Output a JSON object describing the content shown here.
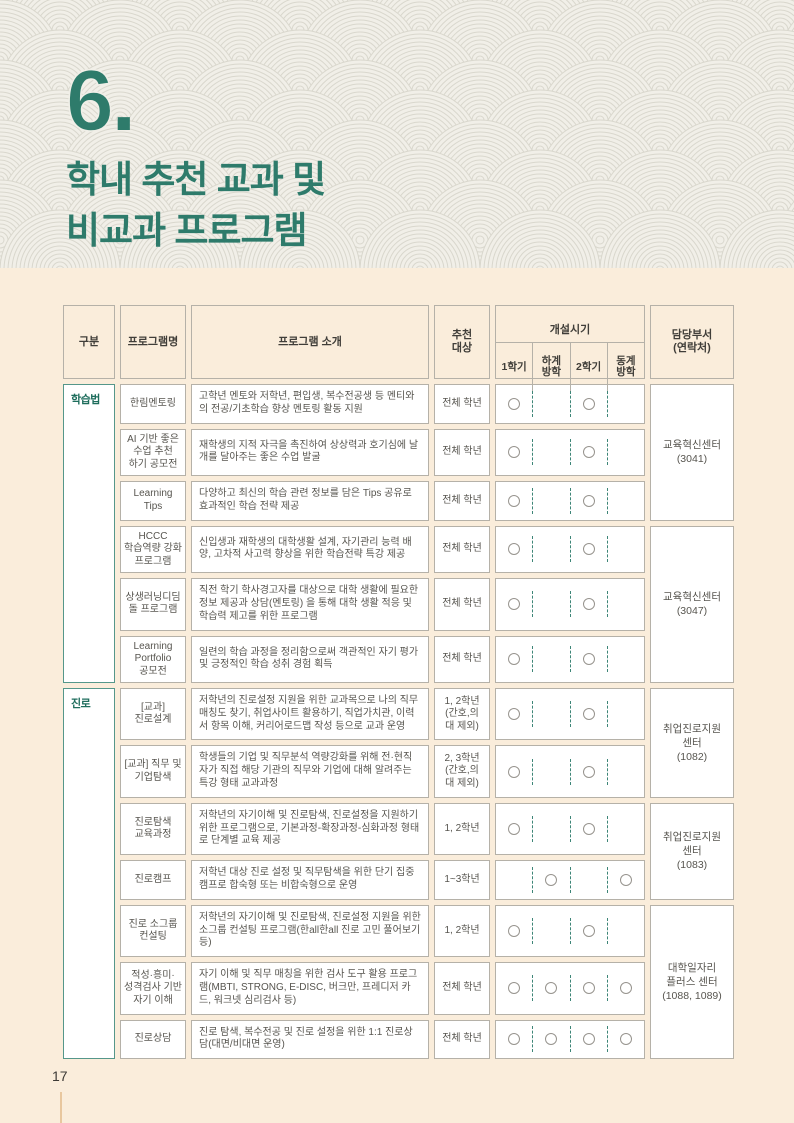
{
  "header": {
    "section_number": "6",
    "section_dot": ".",
    "title_line1": "학내 추천 교과 및",
    "title_line2": "비교과 프로그램"
  },
  "table": {
    "columns": {
      "gubun": "구분",
      "name": "프로그램명",
      "intro": "프로그램 소개",
      "target": "추천\n대상",
      "season_group": "개설시기",
      "seasons": [
        "1학기",
        "하계\n방학",
        "2학기",
        "동계\n방학"
      ],
      "dept": "담당부서\n(연락처)"
    },
    "groups": [
      {
        "label": "학습법"
      },
      {
        "label": "진로"
      }
    ],
    "depts": [
      {
        "label": "교육혁신센터\n(3041)"
      },
      {
        "label": "교육혁신센터\n(3047)"
      },
      {
        "label": "취업진로지원\n센터\n(1082)"
      },
      {
        "label": "취업진로지원\n센터\n(1083)"
      },
      {
        "label": "대학일자리\n플러스 센터\n(1088, 1089)"
      }
    ],
    "rows": [
      {
        "name": "한림멘토링",
        "desc": "고학년 멘토와 저학년, 편입생, 복수전공생 등 멘티와의 전공/기초학습 향상 멘토링 활동 지원",
        "target": "전체 학년",
        "seasons": [
          1,
          0,
          1,
          0
        ]
      },
      {
        "name": "AI 기반 좋은\n수업 추천\n하기 공모전",
        "desc": "재학생의 지적 자극을 촉진하여 상상력과 호기심에 날개를 달아주는 좋은 수업 발굴",
        "target": "전체 학년",
        "seasons": [
          1,
          0,
          1,
          0
        ]
      },
      {
        "name": "Learning\nTips",
        "desc": "다양하고 최신의 학습 관련 정보를 담은 Tips 공유로 효과적인 학습 전략 제공",
        "target": "전체 학년",
        "seasons": [
          1,
          0,
          1,
          0
        ]
      },
      {
        "name": "HCCC\n학습역량 강화\n프로그램",
        "desc": "신입생과 재학생의 대학생활 설계, 자기관리 능력 배양, 고차적 사고력 향상을 위한 학습전략 특강 제공",
        "target": "전체 학년",
        "seasons": [
          1,
          0,
          1,
          0
        ]
      },
      {
        "name": "상생러닝디딤\n돌 프로그램",
        "desc": "직전 학기 학사경고자를 대상으로 대학 생활에 필요한 정보 제공과 상담(멘토링) 을 통해 대학 생활 적응 및 학습력 제고를 위한 프로그램",
        "target": "전체 학년",
        "seasons": [
          1,
          0,
          1,
          0
        ]
      },
      {
        "name": "Learning\nPortfolio\n공모전",
        "desc": "일련의 학습 과정을 정리함으로써 객관적인 자기 평가 및 긍정적인 학습 성취 경험 획득",
        "target": "전체 학년",
        "seasons": [
          1,
          0,
          1,
          0
        ]
      },
      {
        "name": "[교과]\n진로설계",
        "desc": "저학년의 진로설정 지원을 위한 교과목으로 나의 직무매칭도 찾기, 취업사이트 활용하기, 직업가치관, 이력서 항목 이해, 커리어로드맵 작성 등으로 교과 운영",
        "target": "1, 2학년\n(간호,의\n대 제외)",
        "seasons": [
          1,
          0,
          1,
          0
        ]
      },
      {
        "name": "[교과] 직무 및\n기업탐색",
        "desc": "학생들의 기업 및 직무분석 역량강화를 위해 전·현직자가 직접 해당 기관의 직무와 기업에 대해 알려주는 특강 형태 교과과정",
        "target": "2, 3학년\n(간호,의\n대 제외)",
        "seasons": [
          1,
          0,
          1,
          0
        ]
      },
      {
        "name": "진로탐색\n교육과정",
        "desc": "저학년의 자기이해 및 진로탐색, 진로설정을 지원하기 위한 프로그램으로, 기본과정-확장과정-심화과정 형태로 단계별 교육 제공",
        "target": "1, 2학년",
        "seasons": [
          1,
          0,
          1,
          0
        ]
      },
      {
        "name": "진로캠프",
        "desc": "저학년 대상 진로 설정 및 직무탐색을 위한 단기 집중 캠프로 합숙형 또는 비합숙형으로 운영",
        "target": "1~3학년",
        "seasons": [
          0,
          1,
          0,
          1
        ]
      },
      {
        "name": "진로 소그룹\n컨설팅",
        "desc": "저학년의 자기이해 및 진로탐색, 진로설정 지원을 위한 소그룹 컨설팅 프로그램(한all한all 진로 고민 풀어보기 등)",
        "target": "1, 2학년",
        "seasons": [
          1,
          0,
          1,
          0
        ]
      },
      {
        "name": "적성·흥미·\n성격검사 기반\n자기 이해",
        "desc": "자기 이해 및 직무 매칭을 위한 검사 도구 활용 프로그램(MBTI, STRONG, E-DISC, 버크만, 프레디저 카드, 워크넷 심리검사 등)",
        "target": "전체 학년",
        "seasons": [
          1,
          1,
          1,
          1
        ]
      },
      {
        "name": "진로상담",
        "desc": "진로 탐색, 복수전공 및 진로 설정을 위한 1:1 진로상담(대면/비대면 운영)",
        "target": "전체 학년",
        "seasons": [
          1,
          1,
          1,
          1
        ]
      }
    ]
  },
  "footer": {
    "page_number": "17"
  },
  "colors": {
    "accent_teal": "#2e7b6b",
    "category_border_teal": "#55978a",
    "dashed_divider_teal": "#3d8577",
    "page_peach": "#faeddb",
    "hero_beige": "#f1efe8",
    "pattern_gray": "#d9d7cd",
    "cell_border_gray": "#b5b1a8",
    "footer_rule_tan": "#e8c79e"
  }
}
